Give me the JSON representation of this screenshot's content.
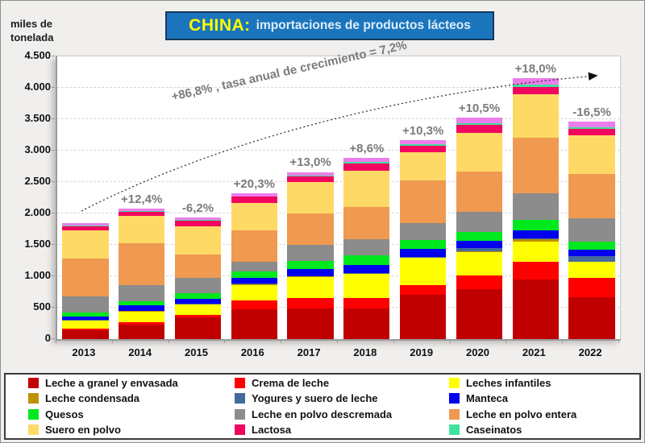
{
  "header": {
    "ylabel_line1": "miles de",
    "ylabel_line2": "tonelada",
    "title_brand": "CHINA:",
    "title_rest": "importaciones de productos lácteos",
    "title_bg": "#1B75BC",
    "title_brand_color": "#FFFF00",
    "title_text_color": "#DCEDFB"
  },
  "annotations": {
    "cagr_text": "+86,8% , tasa anual de crecimiento = 7,2%",
    "text_color": "#7B7B7B"
  },
  "chart_data": {
    "type": "bar",
    "stacked": true,
    "title": "CHINA: importaciones de productos lácteos",
    "ylabel": "miles de tonelada",
    "ylim": [
      0,
      4500
    ],
    "ytick_step": 500,
    "ytick_labels": [
      "4.500",
      "4.000",
      "3.500",
      "3.000",
      "2.500",
      "2.000",
      "1.500",
      "1.000",
      "500",
      "0"
    ],
    "grid": "horizontal-dashed",
    "legend_position": "bottom",
    "categories": [
      "2013",
      "2014",
      "2015",
      "2016",
      "2017",
      "2018",
      "2019",
      "2020",
      "2021",
      "2022"
    ],
    "growth_labels": [
      null,
      "+12,4%",
      "-6,2%",
      "+20,3%",
      "+13,0%",
      "+8,6%",
      "+10,3%",
      "+10,5%",
      "+18,0%",
      "-16,5%"
    ],
    "totals_approx": [
      1850,
      2082,
      1936,
      2323,
      2661,
      2886,
      3169,
      3523,
      4151,
      3457
    ],
    "series": [
      {
        "name": "Leche a granel y envasada",
        "color": "#C00000",
        "values": [
          140,
          235,
          345,
          480,
          490,
          490,
          705,
          799,
          949,
          671
        ]
      },
      {
        "name": "Crema de leche",
        "color": "#FF0000",
        "values": [
          25,
          38,
          45,
          140,
          158,
          158,
          158,
          214,
          278,
          299
        ]
      },
      {
        "name": "Leches infantiles",
        "color": "#FFFF00",
        "values": [
          125,
          162,
          158,
          245,
          342,
          385,
          427,
          376,
          320,
          256
        ]
      },
      {
        "name": "Leche condensada",
        "color": "#BF9000",
        "values": [
          8,
          8,
          8,
          10,
          10,
          10,
          10,
          10,
          43,
          10
        ]
      },
      {
        "name": "Yogures y suero de leche",
        "color": "#44699D",
        "values": [
          5,
          5,
          5,
          6,
          6,
          10,
          10,
          51,
          10,
          85
        ]
      },
      {
        "name": "Manteca",
        "color": "#0000EE",
        "values": [
          62,
          85,
          85,
          95,
          115,
          128,
          128,
          120,
          128,
          107
        ]
      },
      {
        "name": "Quesos",
        "color": "#00E81E",
        "values": [
          62,
          73,
          85,
          105,
          128,
          150,
          141,
          137,
          171,
          128
        ]
      },
      {
        "name": "Leche en polvo descremada",
        "color": "#8C8C8C",
        "values": [
          255,
          248,
          239,
          150,
          248,
          256,
          274,
          320,
          427,
          363
        ]
      },
      {
        "name": "Leche en polvo entera",
        "color": "#EF9A50",
        "values": [
          600,
          671,
          372,
          505,
          504,
          513,
          675,
          641,
          876,
          705
        ]
      },
      {
        "name": "Suero en polvo",
        "color": "#FFD966",
        "values": [
          450,
          432,
          457,
          435,
          500,
          577,
          449,
          620,
          692,
          620
        ]
      },
      {
        "name": "Lactosa",
        "color": "#F2055F",
        "values": [
          68,
          73,
          85,
          95,
          94,
          115,
          107,
          120,
          120,
          107
        ]
      },
      {
        "name": "Caseinatos",
        "color": "#40E29E",
        "values": [
          5,
          5,
          18,
          10,
          10,
          30,
          25,
          30,
          43,
          21
        ]
      },
      {
        "name": "(sin leyenda)",
        "color": "#EC7DEB",
        "values": [
          45,
          47,
          34,
          47,
          56,
          64,
          60,
          85,
          94,
          85
        ]
      }
    ]
  },
  "legend": {
    "items": [
      {
        "label": "Leche a granel y envasada",
        "color": "#C00000"
      },
      {
        "label": "Crema de leche",
        "color": "#FF0000"
      },
      {
        "label": "Leches infantiles",
        "color": "#FFFF00"
      },
      {
        "label": "Leche condensada",
        "color": "#BF9000"
      },
      {
        "label": "Yogures y suero de leche",
        "color": "#44699D"
      },
      {
        "label": "Manteca",
        "color": "#0000EE"
      },
      {
        "label": "Quesos",
        "color": "#00E81E"
      },
      {
        "label": "Leche en polvo descremada",
        "color": "#8C8C8C"
      },
      {
        "label": "Leche en polvo entera",
        "color": "#EF9A50"
      },
      {
        "label": "Suero en polvo",
        "color": "#FFD966"
      },
      {
        "label": "Lactosa",
        "color": "#F2055F"
      },
      {
        "label": "Caseinatos",
        "color": "#40E29E"
      }
    ]
  }
}
